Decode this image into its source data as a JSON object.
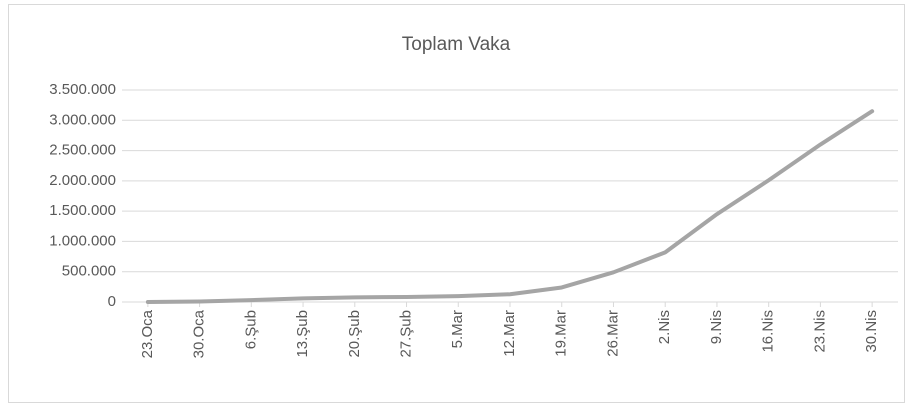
{
  "chart_data": {
    "type": "line",
    "title": "Toplam Vaka",
    "categories": [
      "23.Oca",
      "30.Oca",
      "6.Şub",
      "13.Şub",
      "20.Şub",
      "27.Şub",
      "5.Mar",
      "12.Mar",
      "19.Mar",
      "26.Mar",
      "2.Nis",
      "9.Nis",
      "16.Nis",
      "23.Nis",
      "30.Nis"
    ],
    "series": [
      {
        "name": "Toplam Vaka",
        "color": "#a5a5a5",
        "values": [
          650,
          8000,
          31000,
          60000,
          76000,
          83000,
          97000,
          128000,
          240000,
          490000,
          820000,
          1450000,
          2010000,
          2600000,
          3150000
        ]
      }
    ],
    "ylim": [
      0,
      3500000
    ],
    "yticks": [
      {
        "value": 0,
        "label": "0"
      },
      {
        "value": 500000,
        "label": "500.000"
      },
      {
        "value": 1000000,
        "label": "1.000.000"
      },
      {
        "value": 1500000,
        "label": "1.500.000"
      },
      {
        "value": 2000000,
        "label": "2.000.000"
      },
      {
        "value": 2500000,
        "label": "2.500.000"
      },
      {
        "value": 3000000,
        "label": "3.000.000"
      },
      {
        "value": 3500000,
        "label": "3.500.000"
      }
    ],
    "grid": true
  }
}
